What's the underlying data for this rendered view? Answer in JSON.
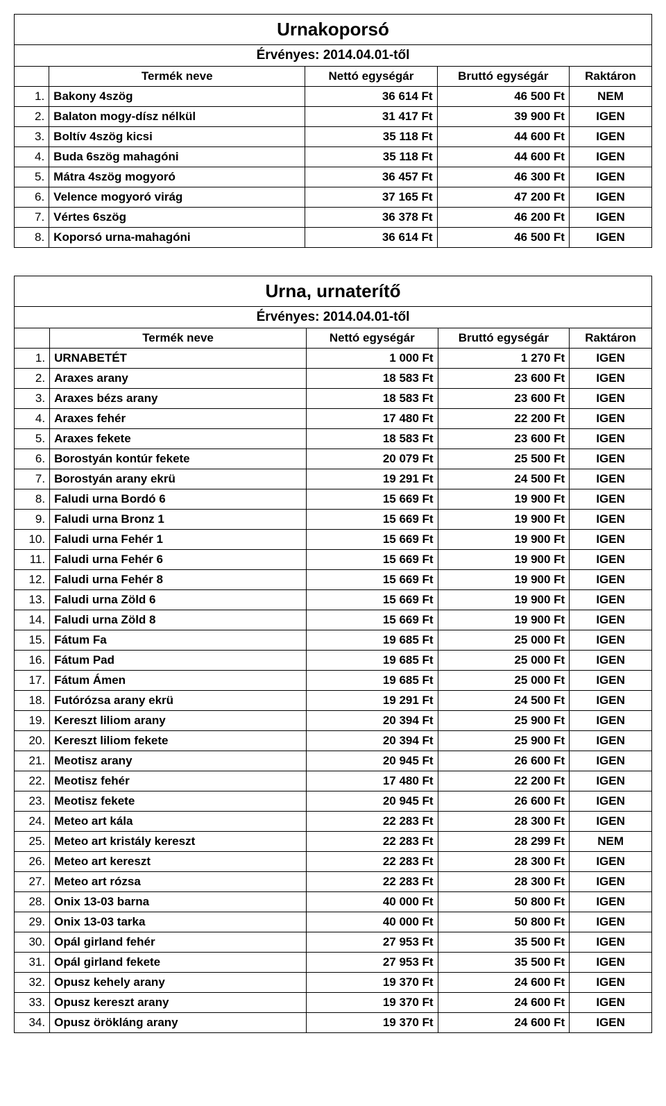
{
  "tables": [
    {
      "title": "Urnakoporsó",
      "subtitle": "Érvényes: 2014.04.01-től",
      "columns": [
        "Termék neve",
        "Nettó egységár",
        "Bruttó egységár",
        "Raktáron"
      ],
      "rows": [
        {
          "n": "1.",
          "name": "Bakony 4szög",
          "netto": "36 614 Ft",
          "brutto": "46 500 Ft",
          "stock": "NEM"
        },
        {
          "n": "2.",
          "name": "Balaton mogy-dísz nélkül",
          "netto": "31 417 Ft",
          "brutto": "39 900 Ft",
          "stock": "IGEN"
        },
        {
          "n": "3.",
          "name": "Boltív 4szög kicsi",
          "netto": "35 118 Ft",
          "brutto": "44 600 Ft",
          "stock": "IGEN"
        },
        {
          "n": "4.",
          "name": "Buda 6szög mahagóni",
          "netto": "35 118 Ft",
          "brutto": "44 600 Ft",
          "stock": "IGEN"
        },
        {
          "n": "5.",
          "name": "Mátra 4szög mogyoró",
          "netto": "36 457 Ft",
          "brutto": "46 300 Ft",
          "stock": "IGEN"
        },
        {
          "n": "6.",
          "name": "Velence mogyoró virág",
          "netto": "37 165 Ft",
          "brutto": "47 200 Ft",
          "stock": "IGEN"
        },
        {
          "n": "7.",
          "name": "Vértes 6szög",
          "netto": "36 378 Ft",
          "brutto": "46 200 Ft",
          "stock": "IGEN"
        },
        {
          "n": "8.",
          "name": "Koporsó urna-mahagóni",
          "netto": "36 614 Ft",
          "brutto": "46 500 Ft",
          "stock": "IGEN"
        }
      ]
    },
    {
      "title": "Urna, urnaterítő",
      "subtitle": "Érvényes: 2014.04.01-től",
      "columns": [
        "Termék neve",
        "Nettó egységár",
        "Bruttó egységár",
        "Raktáron"
      ],
      "rows": [
        {
          "n": "1.",
          "name": "URNABETÉT",
          "netto": "1 000 Ft",
          "brutto": "1 270 Ft",
          "stock": "IGEN"
        },
        {
          "n": "2.",
          "name": "Araxes arany",
          "netto": "18 583 Ft",
          "brutto": "23 600 Ft",
          "stock": "IGEN"
        },
        {
          "n": "3.",
          "name": "Araxes bézs arany",
          "netto": "18 583 Ft",
          "brutto": "23 600 Ft",
          "stock": "IGEN"
        },
        {
          "n": "4.",
          "name": "Araxes fehér",
          "netto": "17 480 Ft",
          "brutto": "22 200 Ft",
          "stock": "IGEN"
        },
        {
          "n": "5.",
          "name": "Araxes fekete",
          "netto": "18 583 Ft",
          "brutto": "23 600 Ft",
          "stock": "IGEN"
        },
        {
          "n": "6.",
          "name": "Borostyán kontúr fekete",
          "netto": "20 079 Ft",
          "brutto": "25 500 Ft",
          "stock": "IGEN"
        },
        {
          "n": "7.",
          "name": "Borostyán arany ekrü",
          "netto": "19 291 Ft",
          "brutto": "24 500 Ft",
          "stock": "IGEN"
        },
        {
          "n": "8.",
          "name": "Faludi urna Bordó 6",
          "netto": "15 669 Ft",
          "brutto": "19 900 Ft",
          "stock": "IGEN"
        },
        {
          "n": "9.",
          "name": "Faludi urna Bronz 1",
          "netto": "15 669 Ft",
          "brutto": "19 900 Ft",
          "stock": "IGEN"
        },
        {
          "n": "10.",
          "name": "Faludi urna Fehér 1",
          "netto": "15 669 Ft",
          "brutto": "19 900 Ft",
          "stock": "IGEN"
        },
        {
          "n": "11.",
          "name": "Faludi urna Fehér 6",
          "netto": "15 669 Ft",
          "brutto": "19 900 Ft",
          "stock": "IGEN"
        },
        {
          "n": "12.",
          "name": "Faludi urna Fehér 8",
          "netto": "15 669 Ft",
          "brutto": "19 900 Ft",
          "stock": "IGEN"
        },
        {
          "n": "13.",
          "name": "Faludi urna Zöld 6",
          "netto": "15 669 Ft",
          "brutto": "19 900 Ft",
          "stock": "IGEN"
        },
        {
          "n": "14.",
          "name": "Faludi urna Zöld 8",
          "netto": "15 669 Ft",
          "brutto": "19 900 Ft",
          "stock": "IGEN"
        },
        {
          "n": "15.",
          "name": "Fátum Fa",
          "netto": "19 685 Ft",
          "brutto": "25 000 Ft",
          "stock": "IGEN"
        },
        {
          "n": "16.",
          "name": "Fátum Pad",
          "netto": "19 685 Ft",
          "brutto": "25 000 Ft",
          "stock": "IGEN"
        },
        {
          "n": "17.",
          "name": "Fátum Ámen",
          "netto": "19 685 Ft",
          "brutto": "25 000 Ft",
          "stock": "IGEN"
        },
        {
          "n": "18.",
          "name": "Futórózsa arany ekrü",
          "netto": "19 291 Ft",
          "brutto": "24 500 Ft",
          "stock": "IGEN"
        },
        {
          "n": "19.",
          "name": "Kereszt liliom arany",
          "netto": "20 394 Ft",
          "brutto": "25 900 Ft",
          "stock": "IGEN"
        },
        {
          "n": "20.",
          "name": "Kereszt liliom fekete",
          "netto": "20 394 Ft",
          "brutto": "25 900 Ft",
          "stock": "IGEN"
        },
        {
          "n": "21.",
          "name": "Meotisz arany",
          "netto": "20 945 Ft",
          "brutto": "26 600 Ft",
          "stock": "IGEN"
        },
        {
          "n": "22.",
          "name": "Meotisz fehér",
          "netto": "17 480 Ft",
          "brutto": "22 200 Ft",
          "stock": "IGEN"
        },
        {
          "n": "23.",
          "name": "Meotisz fekete",
          "netto": "20 945 Ft",
          "brutto": "26 600 Ft",
          "stock": "IGEN"
        },
        {
          "n": "24.",
          "name": "Meteo art kála",
          "netto": "22 283 Ft",
          "brutto": "28 300 Ft",
          "stock": "IGEN"
        },
        {
          "n": "25.",
          "name": "Meteo art kristály kereszt",
          "netto": "22 283 Ft",
          "brutto": "28 299 Ft",
          "stock": "NEM"
        },
        {
          "n": "26.",
          "name": "Meteo art kereszt",
          "netto": "22 283 Ft",
          "brutto": "28 300 Ft",
          "stock": "IGEN"
        },
        {
          "n": "27.",
          "name": "Meteo art rózsa",
          "netto": "22 283 Ft",
          "brutto": "28 300 Ft",
          "stock": "IGEN"
        },
        {
          "n": "28.",
          "name": "Onix 13-03 barna",
          "netto": "40 000 Ft",
          "brutto": "50 800 Ft",
          "stock": "IGEN"
        },
        {
          "n": "29.",
          "name": "Onix 13-03 tarka",
          "netto": "40 000 Ft",
          "brutto": "50 800 Ft",
          "stock": "IGEN"
        },
        {
          "n": "30.",
          "name": "Opál girland fehér",
          "netto": "27 953 Ft",
          "brutto": "35 500 Ft",
          "stock": "IGEN"
        },
        {
          "n": "31.",
          "name": "Opál girland fekete",
          "netto": "27 953 Ft",
          "brutto": "35 500 Ft",
          "stock": "IGEN"
        },
        {
          "n": "32.",
          "name": "Opusz kehely  arany",
          "netto": "19 370 Ft",
          "brutto": "24 600 Ft",
          "stock": "IGEN"
        },
        {
          "n": "33.",
          "name": "Opusz kereszt arany",
          "netto": "19 370 Ft",
          "brutto": "24 600 Ft",
          "stock": "IGEN"
        },
        {
          "n": "34.",
          "name": "Opusz örökláng  arany",
          "netto": "19 370 Ft",
          "brutto": "24 600 Ft",
          "stock": "IGEN"
        }
      ]
    }
  ]
}
